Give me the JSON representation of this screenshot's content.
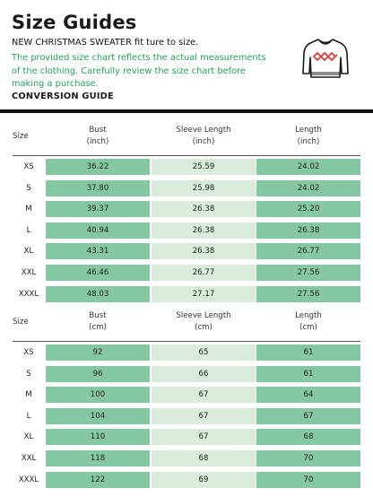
{
  "title": "Size Guides",
  "subtitle": "NEW CHRISTMAS SWEATER fit ture to size.",
  "description": "The provided size chart reflects the actual measurements of the clothing. Carefully review the size chart before making a purchase.",
  "conversion_label": "CONVERSION GUIDE",
  "colors": {
    "accent_text": "#23a057",
    "cell_dark": "#85c7a0",
    "cell_light": "#d8ebdd",
    "sweater_pattern": "#e23b3b"
  },
  "icon": "christmas-sweater-icon",
  "inch_table": {
    "headers": [
      "Size",
      "Bust\n(inch)",
      "Sleeve Length\n(inch)",
      "Length\n(inch)"
    ],
    "rows": [
      [
        "XS",
        "36.22",
        "25.59",
        "24.02"
      ],
      [
        "S",
        "37.80",
        "25.98",
        "24.02"
      ],
      [
        "M",
        "39.37",
        "26.38",
        "25.20"
      ],
      [
        "L",
        "40.94",
        "26.38",
        "26.38"
      ],
      [
        "XL",
        "43.31",
        "26.38",
        "26.77"
      ],
      [
        "XXL",
        "46.46",
        "26.77",
        "27.56"
      ],
      [
        "XXXL",
        "48.03",
        "27.17",
        "27.56"
      ]
    ]
  },
  "cm_table": {
    "headers": [
      "Size",
      "Bust\n(cm)",
      "Sleeve Length\n(cm)",
      "Length\n(cm)"
    ],
    "rows": [
      [
        "XS",
        "92",
        "65",
        "61"
      ],
      [
        "S",
        "96",
        "66",
        "61"
      ],
      [
        "M",
        "100",
        "67",
        "64"
      ],
      [
        "L",
        "104",
        "67",
        "67"
      ],
      [
        "XL",
        "110",
        "67",
        "68"
      ],
      [
        "XXL",
        "118",
        "68",
        "70"
      ],
      [
        "XXXL",
        "122",
        "69",
        "70"
      ]
    ]
  }
}
